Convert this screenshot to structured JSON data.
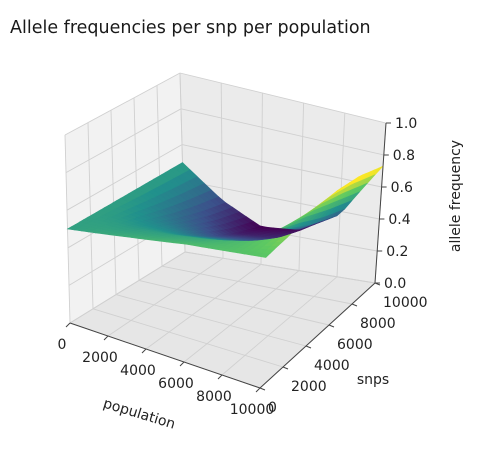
{
  "chart_data": {
    "type": "surface3d",
    "title": "Allele frequencies per snp per population",
    "xlabel": "population",
    "ylabel": "snps",
    "zlabel": "allele frequency",
    "xlim": [
      0,
      10000
    ],
    "ylim": [
      0,
      10000
    ],
    "zlim": [
      0,
      1.0
    ],
    "x_ticks": [
      "0",
      "2000",
      "4000",
      "6000",
      "8000",
      "10000"
    ],
    "y_ticks": [
      "0",
      "2000",
      "4000",
      "6000",
      "8000",
      "10000"
    ],
    "z_ticks": [
      "0.0",
      "0.2",
      "0.4",
      "0.6",
      "0.8",
      "1.0"
    ],
    "colormap": [
      "#440154",
      "#3b528b",
      "#21918c",
      "#5ec962",
      "#fde725"
    ],
    "grid": true,
    "surface": {
      "x": [
        0,
        2000,
        4000,
        6000,
        8000,
        10000
      ],
      "y": [
        0,
        2000,
        4000,
        6000,
        8000,
        10000
      ],
      "z_rows": [
        [
          0.5,
          0.52,
          0.54,
          0.56,
          0.57,
          0.58
        ],
        [
          0.5,
          0.49,
          0.5,
          0.52,
          0.56,
          0.62
        ],
        [
          0.5,
          0.45,
          0.42,
          0.44,
          0.52,
          0.68
        ],
        [
          0.5,
          0.4,
          0.34,
          0.36,
          0.48,
          0.72
        ],
        [
          0.5,
          0.36,
          0.27,
          0.29,
          0.42,
          0.74
        ],
        [
          0.5,
          0.33,
          0.22,
          0.24,
          0.38,
          0.73
        ]
      ]
    }
  }
}
